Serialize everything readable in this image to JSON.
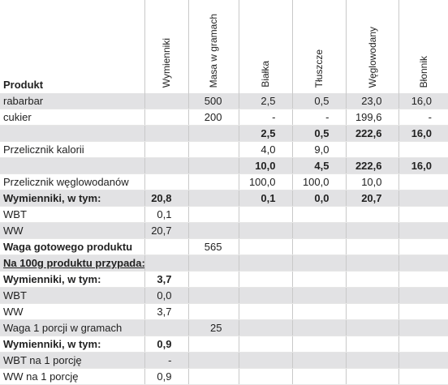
{
  "table": {
    "header": [
      "Produkt",
      "Wymienniki",
      "Masa w gramach",
      "Białka",
      "Tłuszcze",
      "Węglowodany",
      "Błonnik"
    ],
    "rows": [
      [
        "rabarbar",
        null,
        "500",
        "2,5",
        "0,5",
        "23,0",
        "16,0"
      ],
      [
        "cukier",
        null,
        "200",
        "-",
        "-",
        "199,6",
        "-"
      ],
      [
        null,
        null,
        null,
        "2,5",
        "0,5",
        "222,6",
        "16,0"
      ],
      [
        "Przelicznik kalorii",
        null,
        null,
        "4,0",
        "9,0",
        null,
        null
      ],
      [
        null,
        null,
        null,
        "10,0",
        "4,5",
        "222,6",
        "16,0"
      ],
      [
        "Przelicznik węglowodanów",
        null,
        null,
        "100,0",
        "100,0",
        "10,0",
        null
      ],
      [
        "Wymienniki, w tym:",
        "20,8",
        null,
        "0,1",
        "0,0",
        "20,7",
        null
      ],
      [
        "WBT",
        "0,1",
        null,
        null,
        null,
        null,
        null
      ],
      [
        "WW",
        "20,7",
        null,
        null,
        null,
        null,
        null
      ],
      [
        "Waga gotowego produktu",
        null,
        "565",
        null,
        null,
        null,
        null
      ],
      [
        "Na 100g produktu przypada:",
        null,
        null,
        null,
        null,
        null,
        null
      ],
      [
        "Wymienniki, w tym:",
        "3,7",
        null,
        null,
        null,
        null,
        null
      ],
      [
        "WBT",
        "0,0",
        null,
        null,
        null,
        null,
        null
      ],
      [
        "WW",
        "3,7",
        null,
        null,
        null,
        null,
        null
      ],
      [
        "Waga 1 porcji w gramach",
        null,
        "25",
        null,
        null,
        null,
        null
      ],
      [
        "Wymienniki, w tym:",
        "0,9",
        null,
        null,
        null,
        null,
        null
      ],
      [
        "WBT na 1 porcję",
        "-",
        null,
        null,
        null,
        null,
        null
      ],
      [
        "WW na 1 porcję",
        "0,9",
        null,
        null,
        null,
        null,
        null
      ]
    ]
  }
}
